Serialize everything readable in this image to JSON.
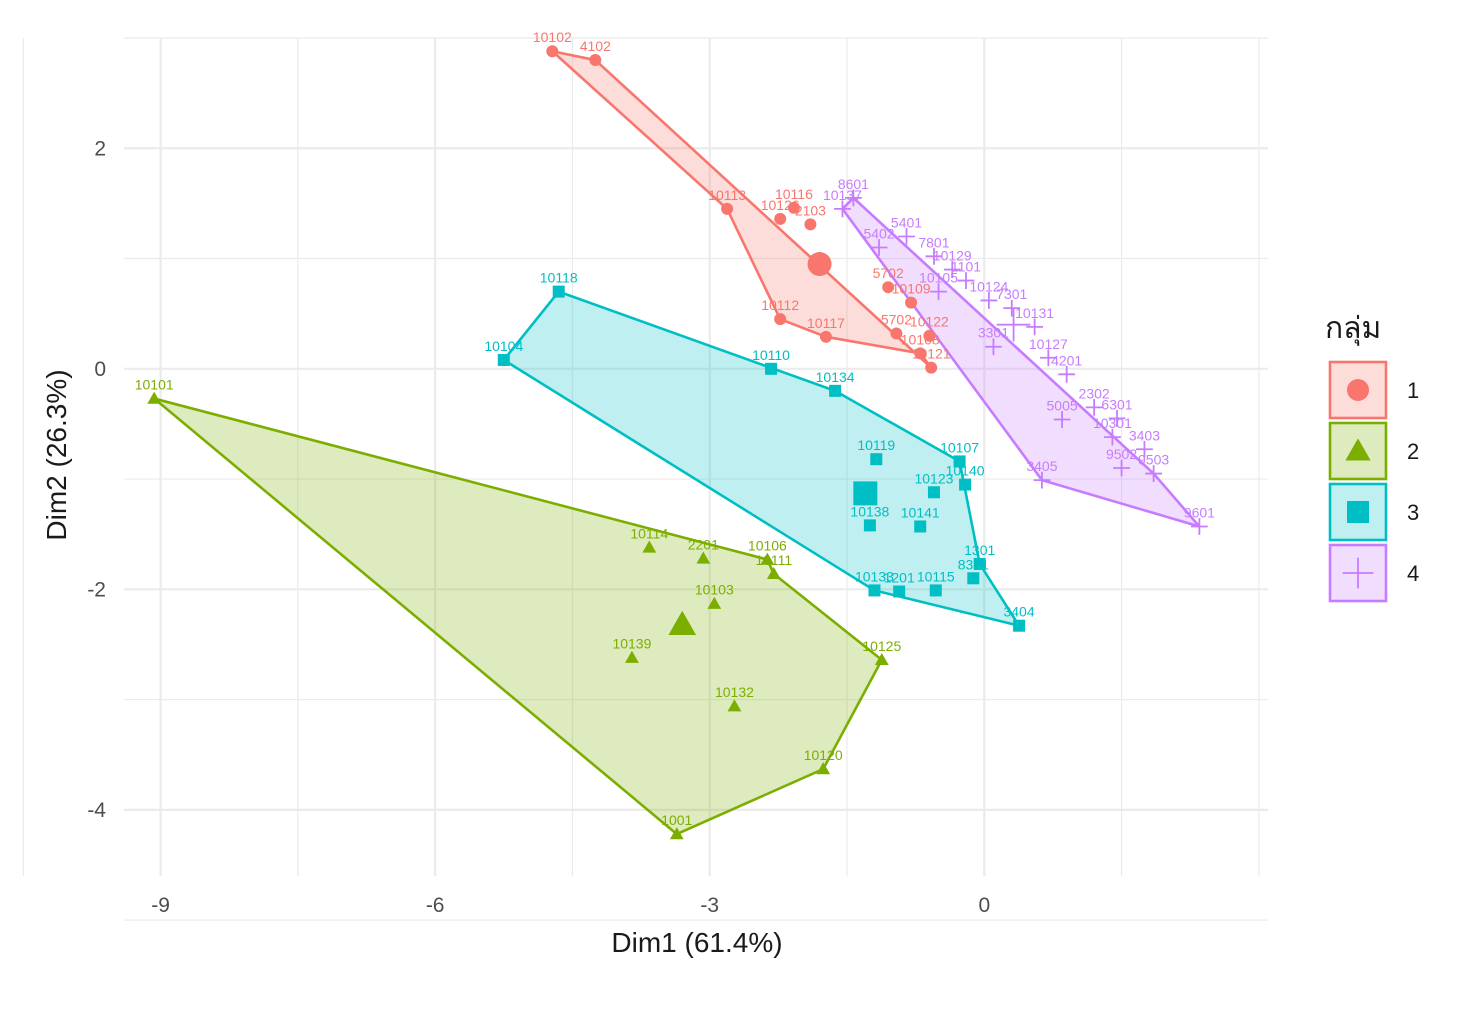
{
  "chart_data": {
    "type": "scatter",
    "title": "",
    "xlabel": "Dim1 (61.4%)",
    "ylabel": "Dim2 (26.3%)",
    "xlim": [
      -9.4,
      3.1
    ],
    "ylim": [
      -4.6,
      3.0
    ],
    "xticks": [
      {
        "value": -9,
        "label": "-9"
      },
      {
        "value": -6,
        "label": "-6"
      },
      {
        "value": -3,
        "label": "-3"
      },
      {
        "value": 0,
        "label": "0"
      }
    ],
    "yticks": [
      {
        "value": 2,
        "label": "2"
      },
      {
        "value": 0,
        "label": "0"
      },
      {
        "value": -2,
        "label": "-2"
      },
      {
        "value": -4,
        "label": "-4"
      }
    ],
    "grid": true,
    "legend": {
      "title": "กลุ่ม",
      "position": "right"
    },
    "series": [
      {
        "name": "1",
        "color": "#F8766D",
        "shape": "circle",
        "centroid": {
          "x": -1.8,
          "y": 0.95
        },
        "points": [
          {
            "label": "10102",
            "x": -4.72,
            "y": 2.88
          },
          {
            "label": "4102",
            "x": -4.25,
            "y": 2.8
          },
          {
            "label": "10113",
            "x": -2.81,
            "y": 1.45
          },
          {
            "label": "10116",
            "x": -2.08,
            "y": 1.46
          },
          {
            "label": "10126",
            "x": -2.23,
            "y": 1.36
          },
          {
            "label": "2103",
            "x": -1.9,
            "y": 1.31
          },
          {
            "label": "5702",
            "x": -1.05,
            "y": 0.74
          },
          {
            "label": "10109",
            "x": -0.8,
            "y": 0.6
          },
          {
            "label": "10112",
            "x": -2.23,
            "y": 0.45
          },
          {
            "label": "10117",
            "x": -1.73,
            "y": 0.29
          },
          {
            "label": "5702",
            "x": -0.96,
            "y": 0.32
          },
          {
            "label": "10122",
            "x": -0.6,
            "y": 0.3
          },
          {
            "label": "10108",
            "x": -0.7,
            "y": 0.14
          },
          {
            "label": "10121",
            "x": -0.58,
            "y": 0.01
          }
        ]
      },
      {
        "name": "2",
        "color": "#7CAE00",
        "shape": "triangle",
        "centroid": {
          "x": -3.3,
          "y": -2.32
        },
        "points": [
          {
            "label": "10101",
            "x": -9.07,
            "y": -0.27
          },
          {
            "label": "10114",
            "x": -3.66,
            "y": -1.62
          },
          {
            "label": "2201",
            "x": -3.07,
            "y": -1.72
          },
          {
            "label": "10106",
            "x": -2.37,
            "y": -1.73
          },
          {
            "label": "10111",
            "x": -2.3,
            "y": -1.86
          },
          {
            "label": "10103",
            "x": -2.95,
            "y": -2.13
          },
          {
            "label": "10139",
            "x": -3.85,
            "y": -2.62
          },
          {
            "label": "10125",
            "x": -1.12,
            "y": -2.64
          },
          {
            "label": "10132",
            "x": -2.73,
            "y": -3.06
          },
          {
            "label": "10120",
            "x": -1.76,
            "y": -3.63
          },
          {
            "label": "1001",
            "x": -3.36,
            "y": -4.22
          }
        ]
      },
      {
        "name": "3",
        "color": "#00BFC4",
        "shape": "square",
        "centroid": {
          "x": -1.3,
          "y": -1.13
        },
        "points": [
          {
            "label": "10118",
            "x": -4.65,
            "y": 0.7
          },
          {
            "label": "10104",
            "x": -5.25,
            "y": 0.08
          },
          {
            "label": "10110",
            "x": -2.33,
            "y": 0.0
          },
          {
            "label": "10134",
            "x": -1.63,
            "y": -0.2
          },
          {
            "label": "10119",
            "x": -1.18,
            "y": -0.82
          },
          {
            "label": "10107",
            "x": -0.27,
            "y": -0.84
          },
          {
            "label": "10140",
            "x": -0.21,
            "y": -1.05
          },
          {
            "label": "10123",
            "x": -0.55,
            "y": -1.12
          },
          {
            "label": "10138",
            "x": -1.25,
            "y": -1.42
          },
          {
            "label": "10141",
            "x": -0.7,
            "y": -1.43
          },
          {
            "label": "1301",
            "x": -0.05,
            "y": -1.77
          },
          {
            "label": "8301",
            "x": -0.12,
            "y": -1.9
          },
          {
            "label": "10133",
            "x": -1.2,
            "y": -2.01
          },
          {
            "label": "1201",
            "x": -0.93,
            "y": -2.02
          },
          {
            "label": "10115",
            "x": -0.53,
            "y": -2.01
          },
          {
            "label": "3404",
            "x": 0.38,
            "y": -2.33
          }
        ]
      },
      {
        "name": "4",
        "color": "#C77CFF",
        "shape": "cross",
        "centroid": {
          "x": 0.32,
          "y": 0.4
        },
        "points": [
          {
            "label": "8601",
            "x": -1.43,
            "y": 1.55
          },
          {
            "label": "10137",
            "x": -1.55,
            "y": 1.45
          },
          {
            "label": "5401",
            "x": -0.85,
            "y": 1.2
          },
          {
            "label": "5402",
            "x": -1.15,
            "y": 1.1
          },
          {
            "label": "7801",
            "x": -0.55,
            "y": 1.02
          },
          {
            "label": "10129",
            "x": -0.35,
            "y": 0.9
          },
          {
            "label": "1101",
            "x": -0.2,
            "y": 0.8
          },
          {
            "label": "10105",
            "x": -0.5,
            "y": 0.7
          },
          {
            "label": "10124",
            "x": 0.05,
            "y": 0.62
          },
          {
            "label": "7301",
            "x": 0.3,
            "y": 0.55
          },
          {
            "label": "10131",
            "x": 0.55,
            "y": 0.38
          },
          {
            "label": "3301",
            "x": 0.1,
            "y": 0.2
          },
          {
            "label": "10127",
            "x": 0.7,
            "y": 0.1
          },
          {
            "label": "4201",
            "x": 0.9,
            "y": -0.05
          },
          {
            "label": "5005",
            "x": 0.85,
            "y": -0.46
          },
          {
            "label": "2302",
            "x": 1.2,
            "y": -0.35
          },
          {
            "label": "6301",
            "x": 1.45,
            "y": -0.45
          },
          {
            "label": "10301",
            "x": 1.4,
            "y": -0.62
          },
          {
            "label": "3403",
            "x": 1.75,
            "y": -0.73
          },
          {
            "label": "9502",
            "x": 1.5,
            "y": -0.9
          },
          {
            "label": "9503",
            "x": 1.85,
            "y": -0.95
          },
          {
            "label": "3405",
            "x": 0.63,
            "y": -1.01
          },
          {
            "label": "9601",
            "x": 2.35,
            "y": -1.43
          }
        ]
      }
    ],
    "hulls": {
      "1": [
        "10102",
        "4102",
        "10121",
        "10108",
        "10117",
        "10112",
        "10113"
      ],
      "2": [
        "10101",
        "10106",
        "10111",
        "10125",
        "10120",
        "1001"
      ],
      "3": [
        "10118",
        "10134",
        "10107",
        "1301",
        "3404",
        "10133",
        "10104"
      ],
      "4": [
        "8601",
        "9503",
        "9601",
        "3405",
        "10137"
      ]
    }
  }
}
